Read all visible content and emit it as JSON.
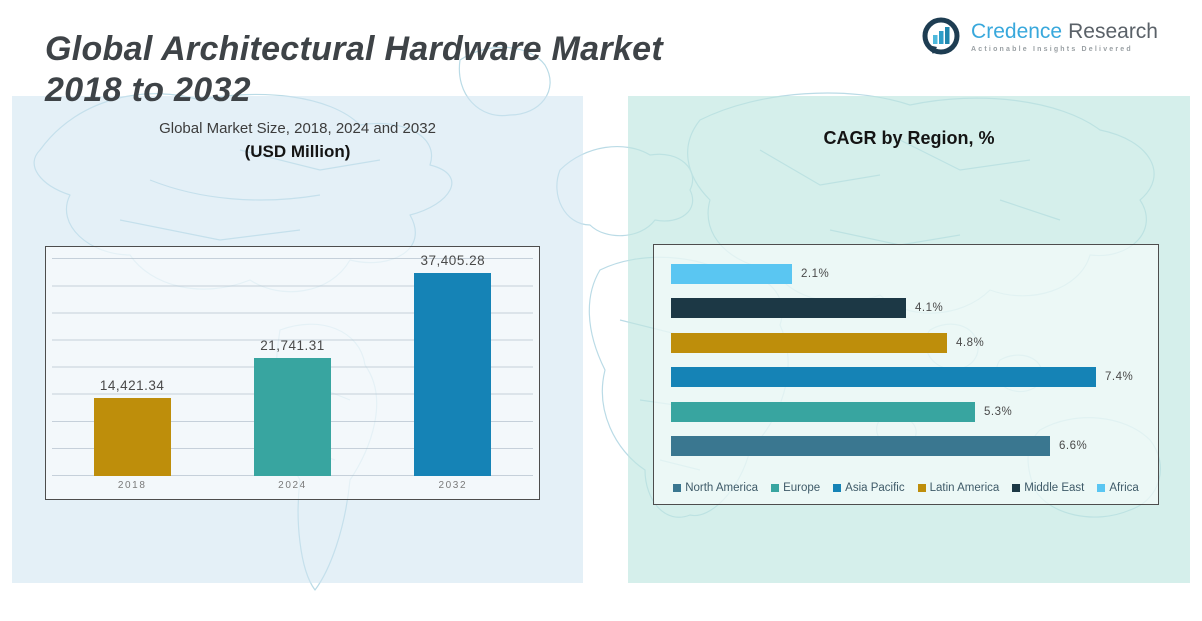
{
  "header": {
    "title_line1": "Global Architectural Hardware Market",
    "title_line2": "2018 to 2032"
  },
  "logo": {
    "brand_primary": "Credence",
    "brand_secondary": "Research",
    "tagline": "Actionable Insights Delivered",
    "brand_primary_color": "#38A8DC",
    "brand_secondary_color": "#5A6168"
  },
  "chart_data": [
    {
      "type": "bar",
      "title": "Global Market Size, 2018, 2024 and 2032",
      "subtitle": "(USD Million)",
      "categories": [
        "2018",
        "2024",
        "2032"
      ],
      "values": [
        14421.34,
        21741.31,
        37405.28
      ],
      "value_labels": [
        "14,421.34",
        "21,741.31",
        "37,405.28"
      ],
      "bar_colors": [
        "#BE8E0B",
        "#38A5A0",
        "#1583B6"
      ],
      "xlabel": "",
      "ylabel": "",
      "ylim": [
        0,
        40000
      ],
      "gridline_step": 5000,
      "grid": true,
      "legend_position": "none"
    },
    {
      "type": "bar-horizontal",
      "title": "CAGR by Region, %",
      "categories": [
        "Africa",
        "Middle East",
        "Latin America",
        "Asia Pacific",
        "Europe",
        "North America"
      ],
      "values": [
        2.1,
        4.1,
        4.8,
        7.4,
        5.3,
        6.6
      ],
      "value_labels": [
        "2.1%",
        "4.1%",
        "4.8%",
        "7.4%",
        "5.3%",
        "6.6%"
      ],
      "bar_colors": [
        "#5AC6F2",
        "#1C3845",
        "#BE8E0B",
        "#1583B6",
        "#38A5A0",
        "#3A7790"
      ],
      "xlabel": "",
      "ylabel": "",
      "xlim": [
        0,
        8.6
      ],
      "grid": false,
      "legend_position": "bottom",
      "legend": [
        {
          "label": "North America",
          "color": "#3A7790"
        },
        {
          "label": "Europe",
          "color": "#38A5A0"
        },
        {
          "label": "Asia Pacific",
          "color": "#1583B6"
        },
        {
          "label": "Latin America",
          "color": "#BE8E0B"
        },
        {
          "label": "Middle East",
          "color": "#1C3845"
        },
        {
          "label": "Africa",
          "color": "#5AC6F2"
        }
      ]
    }
  ]
}
